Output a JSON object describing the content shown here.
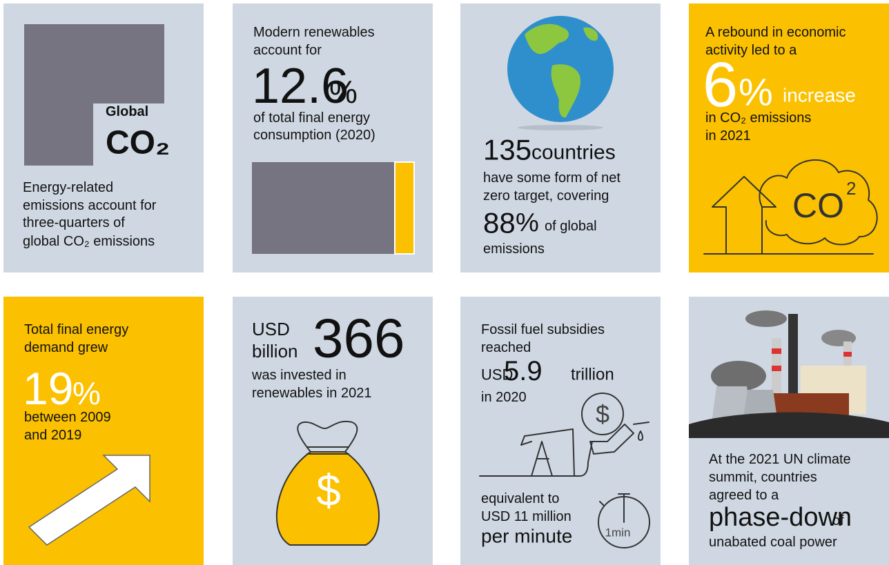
{
  "cards": [
    {
      "texts": [
        "Global",
        "CO₂",
        "Energy-related",
        "emissions account for",
        "three-quarters of",
        "global CO₂ emissions"
      ]
    },
    {
      "texts": [
        "Modern renewables",
        "account for",
        "12.6",
        "%",
        "of total final energy",
        "consumption (2020)"
      ]
    },
    {
      "texts": [
        "135",
        "countries",
        "have some form of net",
        "zero target, covering",
        "88",
        "%",
        "of global",
        "emissions"
      ]
    },
    {
      "texts": [
        "A rebound in economic",
        "activity led to a",
        "6",
        "%",
        "increase",
        "in CO₂ emissions",
        "in 2021",
        "CO",
        "2"
      ]
    },
    {
      "texts": [
        "Total final energy",
        "demand grew",
        "19",
        "%",
        "between 2009",
        "and 2019"
      ]
    },
    {
      "texts": [
        "USD",
        "billion",
        "366",
        "was invested in",
        "renewables in 2021",
        "$"
      ]
    },
    {
      "texts": [
        "Fossil fuel subsidies",
        "reached",
        "USD",
        "5.9",
        "trillion",
        "in 2020",
        "$",
        "equivalent to",
        "USD 11 million",
        "per minute",
        "1min"
      ]
    },
    {
      "texts": [
        "At the 2021 UN climate",
        "summit, countries",
        "agreed to a",
        "phase-down",
        "of",
        "unabated coal power"
      ]
    }
  ]
}
